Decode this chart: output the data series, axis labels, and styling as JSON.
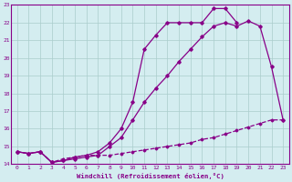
{
  "xlabel": "Windchill (Refroidissement éolien,°C)",
  "x_values": [
    0,
    1,
    2,
    3,
    4,
    5,
    6,
    7,
    8,
    9,
    10,
    11,
    12,
    13,
    14,
    15,
    16,
    17,
    18,
    19,
    20,
    21,
    22,
    23
  ],
  "line1": [
    14.7,
    14.6,
    14.7,
    14.1,
    14.2,
    14.3,
    14.4,
    14.5,
    15.0,
    15.5,
    16.5,
    17.5,
    18.3,
    19.0,
    19.8,
    20.5,
    21.2,
    21.8,
    22.0,
    21.8,
    22.1,
    21.8,
    19.5,
    16.5
  ],
  "line2": [
    14.7,
    14.6,
    14.7,
    14.1,
    14.2,
    14.4,
    14.5,
    14.7,
    15.2,
    16.0,
    17.5,
    20.5,
    21.3,
    22.0,
    22.0,
    22.0,
    22.0,
    22.8,
    22.8,
    22.0,
    null,
    null,
    null,
    null
  ],
  "line3": [
    14.7,
    14.6,
    14.7,
    14.1,
    14.3,
    14.4,
    14.5,
    14.5,
    14.5,
    14.6,
    14.7,
    14.8,
    14.9,
    15.0,
    15.1,
    15.2,
    15.4,
    15.5,
    15.7,
    15.9,
    16.1,
    16.3,
    16.5,
    16.5
  ],
  "line_color": "#880088",
  "bg_color": "#d4edf0",
  "grid_color": "#aacccc",
  "ylim": [
    14,
    23
  ],
  "xlim": [
    -0.5,
    23.5
  ],
  "yticks": [
    14,
    15,
    16,
    17,
    18,
    19,
    20,
    21,
    22,
    23
  ],
  "xticks": [
    0,
    1,
    2,
    3,
    4,
    5,
    6,
    7,
    8,
    9,
    10,
    11,
    12,
    13,
    14,
    15,
    16,
    17,
    18,
    19,
    20,
    21,
    22,
    23
  ]
}
